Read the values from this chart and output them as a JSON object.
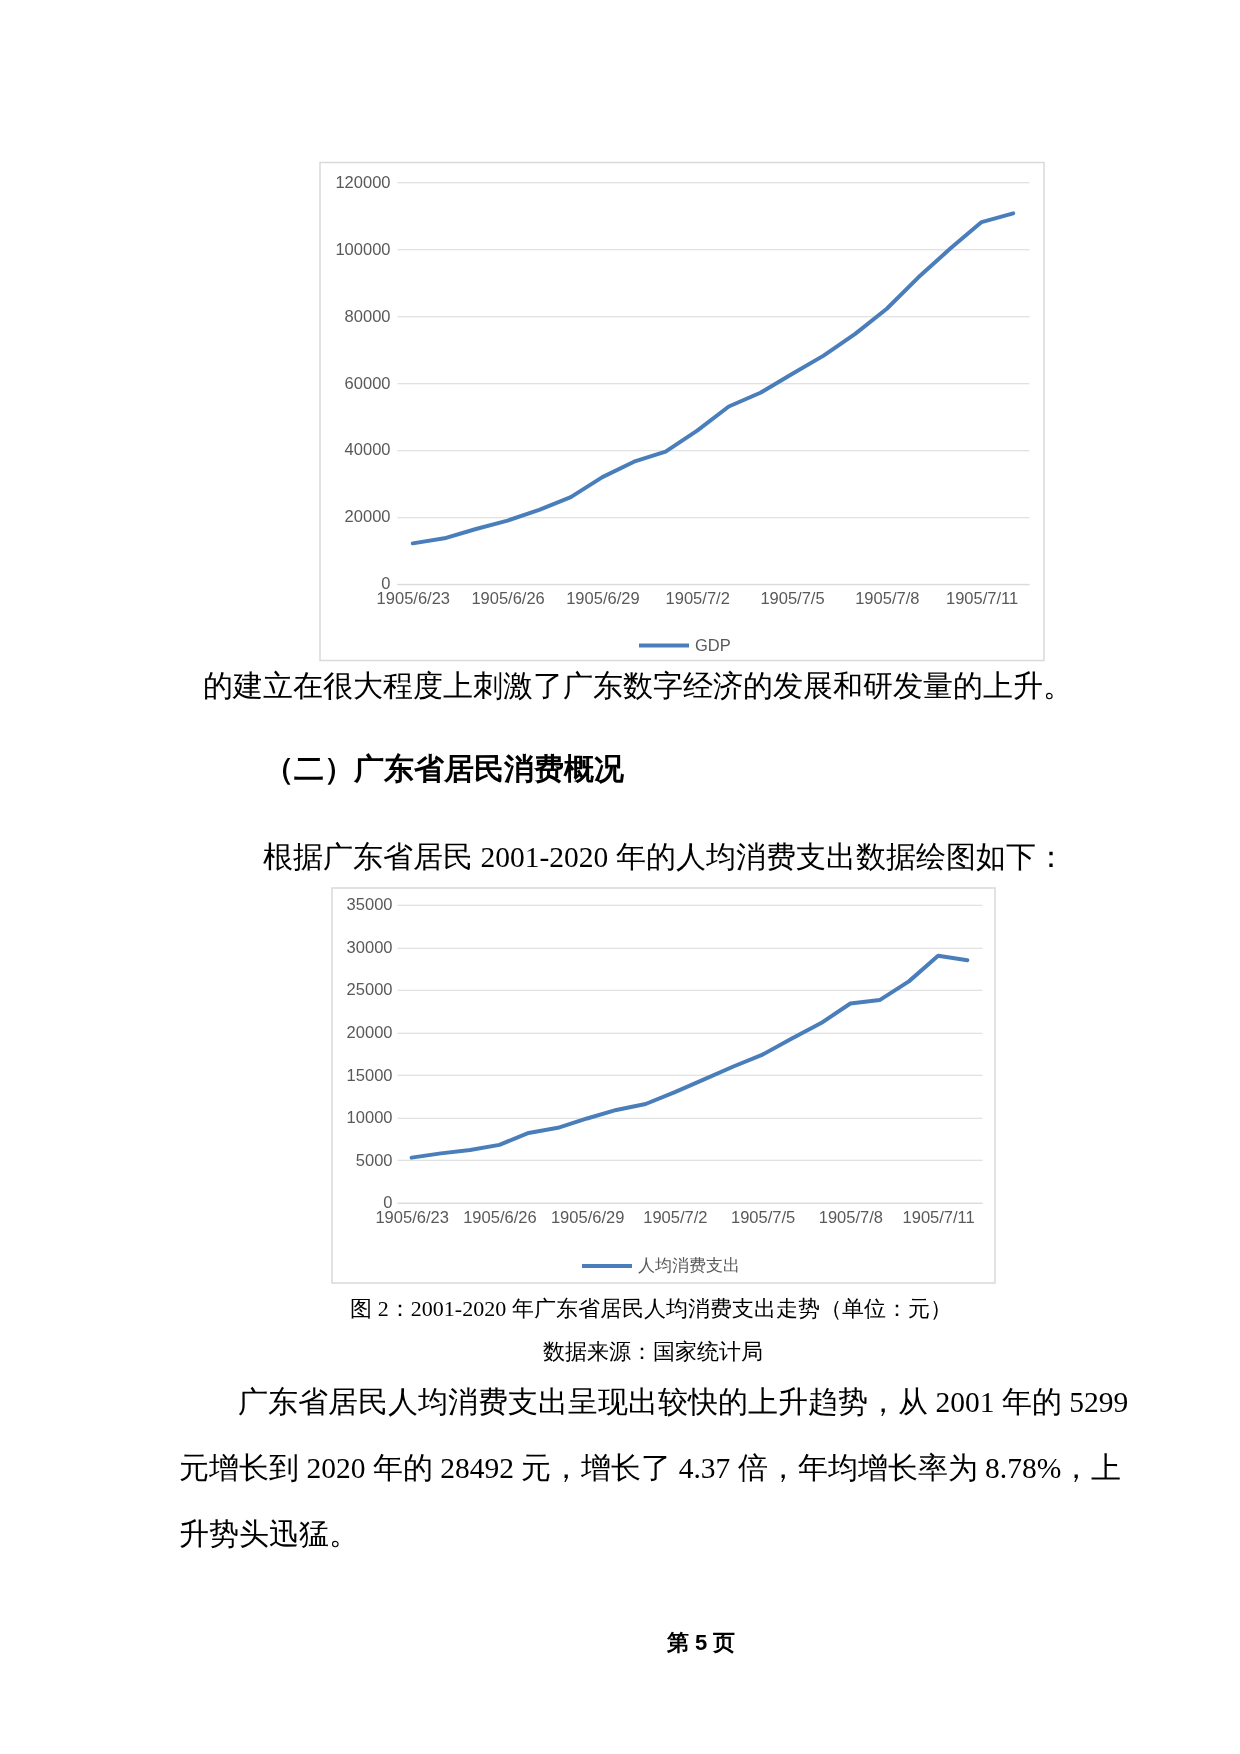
{
  "chart_data": [
    {
      "type": "line",
      "categories": [
        "1905/6/23",
        null,
        null,
        "1905/6/26",
        null,
        null,
        "1905/6/29",
        null,
        null,
        "1905/7/2",
        null,
        null,
        "1905/7/5",
        null,
        null,
        "1905/7/8",
        null,
        null,
        "1905/7/11",
        null
      ],
      "series": [
        {
          "name": "GDP",
          "color": "#4a7ebb",
          "values": [
            12100,
            13600,
            16400,
            18900,
            22100,
            25900,
            31900,
            36500,
            39500,
            45800,
            53000,
            57100,
            62700,
            68200,
            74700,
            82200,
            91600,
            100100,
            108100,
            110700
          ]
        }
      ],
      "ylim": [
        0,
        120000
      ],
      "yticks": [
        0,
        20000,
        40000,
        60000,
        80000,
        100000,
        120000
      ],
      "grid": "y",
      "legend": "bottom",
      "annotations": [
        "的建立在很大程度上刺激了广东数字经济的发展和研发量的上升。",
        "（二）广东省居民消费概况",
        "根据广东省居民 2001-2020 年的人均消费支出数据绘图如下："
      ]
    },
    {
      "type": "line",
      "title": "图 2：2001-2020 年广东省居民人均消费支出走势（单位：元）",
      "subtitle": "数据来源：国家统计局",
      "categories": [
        "1905/6/23",
        null,
        null,
        "1905/6/26",
        null,
        null,
        "1905/6/29",
        null,
        null,
        "1905/7/2",
        null,
        null,
        "1905/7/5",
        null,
        null,
        "1905/7/8",
        null,
        null,
        "1905/7/11",
        null
      ],
      "series": [
        {
          "name": "人均消费支出",
          "color": "#4a7ebb",
          "values": [
            5299,
            5800,
            6200,
            6800,
            8200,
            8800,
            9900,
            10900,
            11600,
            13000,
            14500,
            16000,
            17400,
            19300,
            21100,
            23400,
            23800,
            26000,
            29000,
            28492
          ]
        }
      ],
      "ylim": [
        0,
        35000
      ],
      "yticks": [
        0,
        5000,
        10000,
        15000,
        20000,
        25000,
        30000,
        35000
      ],
      "grid": "y",
      "legend": "bottom",
      "annotations": [
        "广东省居民人均消费支出呈现出较快的上升趋势，从 2001 年的 5299 元增长到 2020 年的 28492 元，增长了 4.37 倍，年均增长率为 8.78%，上升势头迅猛。",
        "第 5 页"
      ]
    }
  ]
}
